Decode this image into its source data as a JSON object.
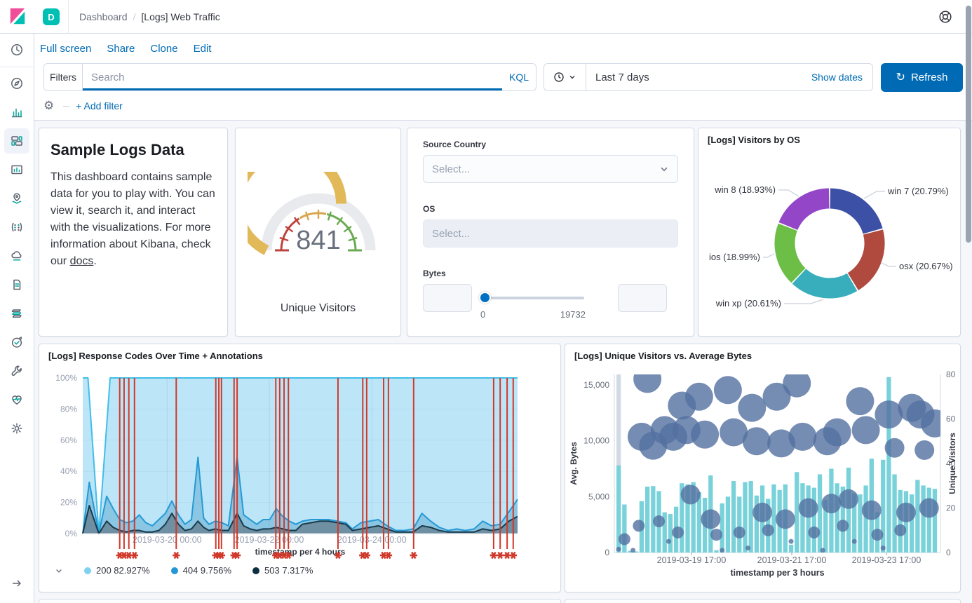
{
  "header": {
    "space_badge": "D",
    "breadcrumb": {
      "section": "Dashboard",
      "separator": "/",
      "page": "[Logs] Web Traffic"
    }
  },
  "sidebar": {
    "items": [
      {
        "id": "recently-viewed",
        "icon": "clock"
      },
      {
        "id": "discover",
        "icon": "compass"
      },
      {
        "id": "visualize",
        "icon": "bar-chart"
      },
      {
        "id": "dashboard",
        "icon": "dashboard",
        "selected": true
      },
      {
        "id": "canvas",
        "icon": "frame"
      },
      {
        "id": "maps",
        "icon": "map-pin"
      },
      {
        "id": "machine-learning",
        "icon": "dots"
      },
      {
        "id": "infrastructure",
        "icon": "cloud"
      },
      {
        "id": "logs",
        "icon": "document"
      },
      {
        "id": "apm",
        "icon": "stack"
      },
      {
        "id": "uptime",
        "icon": "clock-check"
      },
      {
        "id": "dev-tools",
        "icon": "wrench"
      },
      {
        "id": "stack-monitoring",
        "icon": "heart-pulse"
      },
      {
        "id": "management",
        "icon": "gear"
      }
    ]
  },
  "toolbar": {
    "links": [
      {
        "label": "Full screen"
      },
      {
        "label": "Share"
      },
      {
        "label": "Clone"
      },
      {
        "label": "Edit"
      }
    ]
  },
  "query_bar": {
    "filters_label": "Filters",
    "search_placeholder": "Search",
    "language_button": "KQL",
    "time_range": "Last 7 days",
    "show_dates_label": "Show dates",
    "refresh_label": "Refresh"
  },
  "filter_bar": {
    "add_filter_label": "+ Add filter"
  },
  "panels": {
    "markdown": {
      "title": "Sample Logs Data",
      "body_before_link": "This dashboard contains sample data for you to play with. You can view it, search it, and interact with the visualizations. For more information about Kibana, check our ",
      "link_text": "docs",
      "body_after_link": "."
    },
    "controls": {
      "fields": [
        {
          "label": "Source Country",
          "placeholder": "Select...",
          "type": "select"
        },
        {
          "label": "OS",
          "placeholder": "Select...",
          "type": "select-disabled"
        },
        {
          "label": "Bytes",
          "type": "range",
          "min_label": "0",
          "max_label": "19732"
        }
      ]
    }
  },
  "chart_data": [
    {
      "type": "gauge",
      "title": "Unique Visitors",
      "value": "841",
      "fill_fraction": 0.645,
      "progress_color": "#E2B958",
      "track_color": "#E8EAED",
      "bands": [
        {
          "from": 0,
          "to": 0.33,
          "color": "#BD443D"
        },
        {
          "from": 0.33,
          "to": 0.57,
          "color": "#D9A54C"
        },
        {
          "from": 0.57,
          "to": 1,
          "color": "#6BAA51"
        }
      ]
    },
    {
      "type": "pie",
      "title": "[Logs] Visitors by OS",
      "slices": [
        {
          "label": "win 7 (20.79%)",
          "name": "win 7",
          "pct": 20.79,
          "color": "#3C50A5"
        },
        {
          "label": "osx (20.67%)",
          "name": "osx",
          "pct": 20.67,
          "color": "#B04A3F"
        },
        {
          "label": "win xp (20.61%)",
          "name": "win xp",
          "pct": 20.61,
          "color": "#38AEBD"
        },
        {
          "label": "ios (18.99%)",
          "name": "ios",
          "pct": 18.99,
          "color": "#6DBE47"
        },
        {
          "label": "win 8 (18.93%)",
          "name": "win 8",
          "pct": 18.93,
          "color": "#9346C8"
        }
      ]
    },
    {
      "type": "area",
      "title": "[Logs] Response Codes Over Time + Annotations",
      "xlabel": "timestamp per 4 hours",
      "x_ticks": [
        "2019-03-20 00:00",
        "2019-03-22 00:00",
        "2019-03-24 00:00"
      ],
      "x_tick_pos": [
        19.4,
        42.9,
        66.5
      ],
      "y_ticks": [
        "100%",
        "80%",
        "60%",
        "40%",
        "20%",
        "0%"
      ],
      "ylim": [
        0,
        100
      ],
      "series": [
        {
          "name": "200",
          "pct_label": "82.927%",
          "dot": "#7ED2F0",
          "line": "#41BEE8",
          "fill": "#B5E3F7",
          "fill_opacity": 0.9,
          "points": [
            [
              0,
              100
            ],
            [
              1.2,
              100
            ],
            [
              3.7,
              0
            ],
            [
              6.3,
              100
            ],
            [
              100,
              100
            ]
          ]
        },
        {
          "name": "404",
          "pct_label": "9.756%",
          "dot": "#2596D6",
          "line": "#2499D6",
          "fill": "#2482B7",
          "fill_opacity": 0.32,
          "points": [
            [
              0,
              0
            ],
            [
              1.5,
              33
            ],
            [
              3.7,
              0
            ],
            [
              5.5,
              24
            ],
            [
              7,
              16
            ],
            [
              8.5,
              9
            ],
            [
              10,
              7
            ],
            [
              11.5,
              8
            ],
            [
              13,
              12
            ],
            [
              14.5,
              7
            ],
            [
              16,
              5
            ],
            [
              17.5,
              9
            ],
            [
              19,
              13
            ],
            [
              20.5,
              21
            ],
            [
              22,
              12
            ],
            [
              23.5,
              6
            ],
            [
              25,
              9
            ],
            [
              26.5,
              49
            ],
            [
              27.8,
              10
            ],
            [
              29,
              6
            ],
            [
              30.5,
              8
            ],
            [
              32,
              7
            ],
            [
              33.5,
              5
            ],
            [
              35.5,
              49
            ],
            [
              37,
              12
            ],
            [
              38.5,
              9
            ],
            [
              40,
              6
            ],
            [
              41.5,
              9
            ],
            [
              43,
              9
            ],
            [
              44.5,
              16
            ],
            [
              46,
              11
            ],
            [
              47.5,
              8
            ],
            [
              49,
              6
            ],
            [
              50.5,
              8
            ],
            [
              52.5,
              9
            ],
            [
              54.5,
              9
            ],
            [
              56.5,
              9
            ],
            [
              58.5,
              8
            ],
            [
              60.5,
              7
            ],
            [
              62,
              3
            ],
            [
              64,
              7
            ],
            [
              66,
              8
            ],
            [
              68,
              9
            ],
            [
              70,
              5
            ],
            [
              72,
              2
            ],
            [
              74,
              2
            ],
            [
              76,
              3
            ],
            [
              78,
              13
            ],
            [
              80,
              8
            ],
            [
              82,
              4
            ],
            [
              84,
              2
            ],
            [
              86,
              3
            ],
            [
              88,
              2
            ],
            [
              90,
              3
            ],
            [
              92,
              8
            ],
            [
              94,
              5
            ],
            [
              96,
              6
            ],
            [
              98,
              14
            ],
            [
              100,
              22
            ]
          ]
        },
        {
          "name": "503",
          "pct_label": "7.317%",
          "dot": "#0C2E40",
          "line": "#163B4D",
          "fill": "#5A646E",
          "fill_opacity": 0.55,
          "points": [
            [
              0,
              0
            ],
            [
              1.5,
              18
            ],
            [
              3.7,
              0
            ],
            [
              5.5,
              8
            ],
            [
              7,
              4
            ],
            [
              8.5,
              2
            ],
            [
              10,
              1
            ],
            [
              11.5,
              2
            ],
            [
              13,
              2
            ],
            [
              14.5,
              1
            ],
            [
              16,
              1
            ],
            [
              17.5,
              2
            ],
            [
              19,
              6
            ],
            [
              20.5,
              13
            ],
            [
              22,
              6
            ],
            [
              23.5,
              2
            ],
            [
              25,
              3
            ],
            [
              26.5,
              8
            ],
            [
              27.8,
              4
            ],
            [
              29,
              2
            ],
            [
              30.5,
              3
            ],
            [
              32,
              2
            ],
            [
              33.5,
              2
            ],
            [
              35.5,
              13
            ],
            [
              37,
              5
            ],
            [
              38.5,
              3
            ],
            [
              40,
              2
            ],
            [
              41.5,
              3
            ],
            [
              43,
              3
            ],
            [
              44.5,
              4
            ],
            [
              46,
              3
            ],
            [
              47.5,
              2
            ],
            [
              49,
              2
            ],
            [
              50.5,
              6
            ],
            [
              52.5,
              7
            ],
            [
              54.5,
              8
            ],
            [
              56.5,
              8
            ],
            [
              58.5,
              7
            ],
            [
              60.5,
              6
            ],
            [
              62,
              2
            ],
            [
              64,
              3
            ],
            [
              66,
              4
            ],
            [
              68,
              5
            ],
            [
              70,
              3
            ],
            [
              72,
              1
            ],
            [
              74,
              1
            ],
            [
              76,
              1
            ],
            [
              78,
              5
            ],
            [
              80,
              4
            ],
            [
              82,
              2
            ],
            [
              84,
              1
            ],
            [
              86,
              1
            ],
            [
              88,
              1
            ],
            [
              90,
              1
            ],
            [
              92,
              3
            ],
            [
              94,
              2
            ],
            [
              96,
              3
            ],
            [
              98,
              8
            ],
            [
              100,
              11
            ]
          ]
        }
      ],
      "annotations": {
        "color": "#D0392B",
        "x_pos": [
          8.5,
          9.5,
          10.6,
          11.9,
          21.5,
          30.6,
          31.3,
          31.9,
          34.8,
          35.5,
          44.4,
          45.3,
          46.3,
          47.3,
          58.7,
          64.4,
          65.3,
          69.2,
          70.3,
          76.1,
          94.5,
          96.0,
          97.6,
          99.0
        ]
      }
    },
    {
      "type": "bar+bubble",
      "title": "[Logs] Unique Visitors vs. Average Bytes",
      "xlabel": "timestamp per 3 hours",
      "x_ticks": [
        "2019-03-19 17:00",
        "2019-03-21 17:00",
        "2019-03-23 17:00"
      ],
      "left_axis": {
        "label": "Avg. Bytes",
        "ticks": [
          "15,000",
          "10,000",
          "5,000",
          "0"
        ],
        "tick_values": [
          15000,
          10000,
          5000,
          0
        ],
        "max": 15940
      },
      "right_axis": {
        "label": "Unique Visitors",
        "ticks": [
          "80",
          "60",
          "40",
          "20",
          "0"
        ],
        "tick_values": [
          80,
          60,
          40,
          20,
          0
        ],
        "max": 80
      },
      "bars": {
        "color": "#79D2DA",
        "partial_color": "#D3DAE6",
        "partial_index": 0,
        "values": [
          7800,
          4300,
          150,
          100,
          4600,
          5900,
          5950,
          5500,
          3600,
          3450,
          4100,
          6200,
          6100,
          6300,
          5400,
          4900,
          6900,
          200,
          4400,
          5000,
          6400,
          5000,
          6300,
          6400,
          5100,
          6000,
          4800,
          6100,
          5600,
          6100,
          700,
          7200,
          6200,
          6000,
          5800,
          7000,
          4700,
          7500,
          6200,
          5900,
          7600,
          5300,
          5200,
          6000,
          8400,
          3600,
          8300,
          15700,
          7000,
          5600,
          5500,
          5200,
          6500,
          6000,
          5800,
          5700
        ]
      },
      "bubbles": {
        "color": "#5470A0",
        "opacity": 0.8,
        "points": [
          [
            0,
            1.5,
            "d"
          ],
          [
            1,
            6,
            "s"
          ],
          [
            2.5,
            1,
            "d"
          ],
          [
            3.5,
            12,
            "s"
          ],
          [
            4,
            52,
            "l"
          ],
          [
            5,
            78,
            "l"
          ],
          [
            6,
            48,
            "l"
          ],
          [
            7,
            14,
            "s"
          ],
          [
            8,
            55,
            "l"
          ],
          [
            8.7,
            5,
            "d"
          ],
          [
            9.5,
            52,
            "l"
          ],
          [
            10.3,
            9,
            "s"
          ],
          [
            11,
            66,
            "l"
          ],
          [
            11.8,
            55,
            "l"
          ],
          [
            12.5,
            26,
            "m"
          ],
          [
            14,
            70,
            "l"
          ],
          [
            15,
            53,
            "l"
          ],
          [
            16,
            15,
            "m"
          ],
          [
            17,
            8,
            "s"
          ],
          [
            18,
            1,
            "d"
          ],
          [
            19,
            73,
            "l"
          ],
          [
            20,
            54,
            "l"
          ],
          [
            21,
            9,
            "s"
          ],
          [
            22.5,
            2,
            "d"
          ],
          [
            23.2,
            65,
            "l"
          ],
          [
            24,
            50,
            "l"
          ],
          [
            25,
            18,
            "m"
          ],
          [
            26,
            10,
            "s"
          ],
          [
            27.5,
            70,
            "l"
          ],
          [
            28.3,
            49,
            "l"
          ],
          [
            29,
            15,
            "m"
          ],
          [
            30,
            5,
            "d"
          ],
          [
            31,
            76,
            "l"
          ],
          [
            32,
            52,
            "l"
          ],
          [
            33,
            20,
            "m"
          ],
          [
            34,
            9,
            "s"
          ],
          [
            35.5,
            1,
            "d"
          ],
          [
            36.3,
            50,
            "l"
          ],
          [
            37,
            22,
            "m"
          ],
          [
            38,
            54,
            "l"
          ],
          [
            39,
            12,
            "s"
          ],
          [
            40,
            24,
            "m"
          ],
          [
            41,
            5,
            "d"
          ],
          [
            42,
            68,
            "l"
          ],
          [
            43,
            55,
            "l"
          ],
          [
            44,
            19,
            "m"
          ],
          [
            45,
            8,
            "s"
          ],
          [
            46,
            2,
            "d"
          ],
          [
            47,
            62,
            "l"
          ],
          [
            48,
            47,
            "m"
          ],
          [
            49,
            10,
            "s"
          ],
          [
            50,
            18,
            "m"
          ],
          [
            51,
            65,
            "l"
          ],
          [
            52.5,
            62,
            "l"
          ],
          [
            53.2,
            46,
            "m"
          ],
          [
            54,
            20,
            "m"
          ],
          [
            55,
            58,
            "l"
          ]
        ]
      }
    }
  ]
}
